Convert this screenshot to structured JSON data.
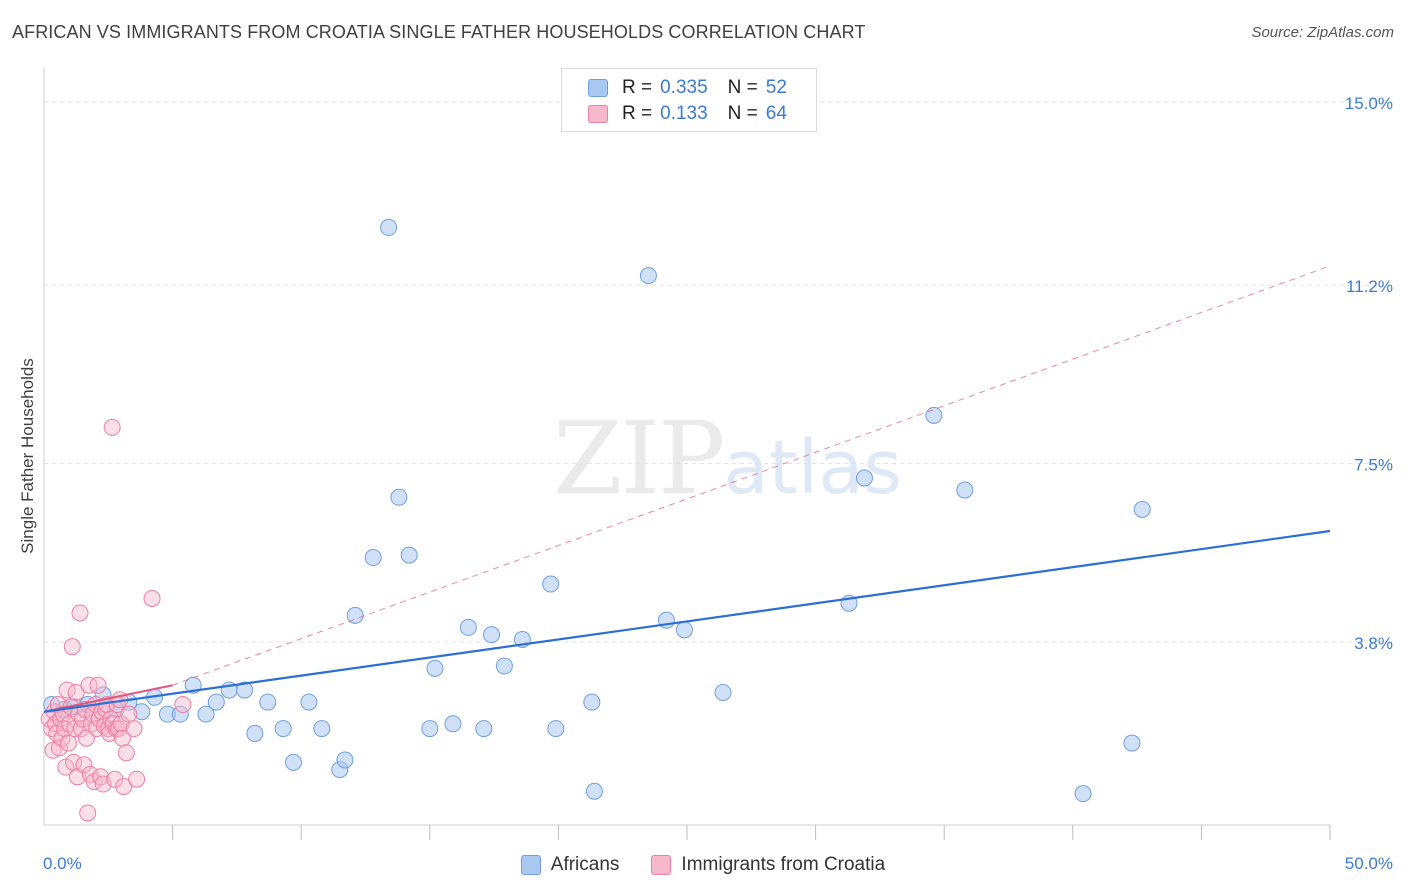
{
  "title": "AFRICAN VS IMMIGRANTS FROM CROATIA SINGLE FATHER HOUSEHOLDS CORRELATION CHART",
  "source": "Source: ZipAtlas.com",
  "watermark": {
    "zip": "ZIP",
    "atlas": "atlas"
  },
  "colors": {
    "blue_fill": "#a9c8f0",
    "blue_stroke": "#6f9fe0",
    "blue_line": "#2b6fd4",
    "pink_fill": "#f7b8cb",
    "pink_stroke": "#ee7fa0",
    "pink_line": "#e0567f",
    "grid": "#e3e3e3",
    "tick_text": "#3a7bd5"
  },
  "legend_top": [
    {
      "r_label": "R = ",
      "r_value": "0.335",
      "n_label": "N = ",
      "n_value": "52"
    },
    {
      "r_label": "R = ",
      "r_value": "0.133",
      "n_label": "N = ",
      "n_value": "64"
    }
  ],
  "legend_bottom": [
    "Africans",
    "Immigrants from Croatia"
  ],
  "chart_data": {
    "type": "scatter",
    "title": "AFRICAN VS IMMIGRANTS FROM CROATIA SINGLE FATHER HOUSEHOLDS CORRELATION CHART",
    "xlabel": "",
    "ylabel": "Single Father Households",
    "xlim": [
      0,
      50
    ],
    "ylim": [
      0,
      15.5
    ],
    "x_tick_labels": [
      "0.0%",
      "50.0%"
    ],
    "y_ticks": [
      3.8,
      7.5,
      11.2,
      15.0
    ],
    "y_tick_labels": [
      "3.8%",
      "7.5%",
      "11.2%",
      "15.0%"
    ],
    "series": [
      {
        "name": "Africans",
        "r": 0.335,
        "n": 52,
        "trend": {
          "x": [
            0,
            50
          ],
          "y": [
            2.35,
            6.1
          ],
          "style": "solid"
        },
        "points": [
          [
            0.3,
            2.5
          ],
          [
            0.8,
            2.4
          ],
          [
            1.2,
            2.45
          ],
          [
            1.7,
            2.5
          ],
          [
            2.3,
            2.7
          ],
          [
            2.8,
            2.4
          ],
          [
            3.3,
            2.55
          ],
          [
            3.8,
            2.35
          ],
          [
            4.3,
            2.65
          ],
          [
            4.8,
            2.3
          ],
          [
            5.3,
            2.3
          ],
          [
            5.8,
            2.9
          ],
          [
            6.3,
            2.3
          ],
          [
            6.7,
            2.55
          ],
          [
            7.2,
            2.8
          ],
          [
            7.8,
            2.8
          ],
          [
            8.2,
            1.9
          ],
          [
            8.7,
            2.55
          ],
          [
            9.3,
            2.0
          ],
          [
            9.7,
            1.3
          ],
          [
            10.3,
            2.55
          ],
          [
            10.8,
            2.0
          ],
          [
            11.5,
            1.15
          ],
          [
            11.7,
            1.35
          ],
          [
            12.1,
            4.35
          ],
          [
            12.8,
            5.55
          ],
          [
            13.4,
            12.4
          ],
          [
            13.8,
            6.8
          ],
          [
            14.2,
            5.6
          ],
          [
            15.0,
            2.0
          ],
          [
            15.2,
            3.25
          ],
          [
            15.9,
            2.1
          ],
          [
            16.5,
            4.1
          ],
          [
            17.1,
            2.0
          ],
          [
            17.4,
            3.95
          ],
          [
            17.9,
            3.3
          ],
          [
            18.6,
            3.85
          ],
          [
            19.7,
            5.0
          ],
          [
            19.9,
            2.0
          ],
          [
            21.3,
            2.55
          ],
          [
            21.4,
            0.7
          ],
          [
            23.5,
            11.4
          ],
          [
            24.2,
            4.25
          ],
          [
            24.9,
            4.05
          ],
          [
            26.4,
            2.75
          ],
          [
            31.3,
            4.6
          ],
          [
            31.9,
            7.2
          ],
          [
            34.6,
            8.5
          ],
          [
            35.8,
            6.95
          ],
          [
            40.4,
            0.65
          ],
          [
            42.3,
            1.7
          ],
          [
            42.7,
            6.55
          ]
        ]
      },
      {
        "name": "Immigrants from Croatia",
        "r": 0.133,
        "n": 64,
        "trend": {
          "x": [
            0,
            5
          ],
          "y": [
            2.35,
            2.9
          ],
          "style": "solid"
        },
        "trend_extended": {
          "x": [
            5,
            50
          ],
          "y": [
            2.9,
            11.6
          ],
          "style": "dashed"
        },
        "points": [
          [
            0.2,
            2.2
          ],
          [
            0.3,
            2.0
          ],
          [
            0.35,
            1.55
          ],
          [
            0.4,
            2.35
          ],
          [
            0.45,
            2.1
          ],
          [
            0.5,
            1.9
          ],
          [
            0.55,
            2.5
          ],
          [
            0.6,
            1.6
          ],
          [
            0.65,
            2.2
          ],
          [
            0.7,
            1.8
          ],
          [
            0.75,
            2.3
          ],
          [
            0.8,
            2.0
          ],
          [
            0.85,
            1.2
          ],
          [
            0.9,
            2.8
          ],
          [
            0.95,
            1.7
          ],
          [
            1.0,
            2.1
          ],
          [
            1.05,
            2.45
          ],
          [
            1.1,
            3.7
          ],
          [
            1.15,
            1.3
          ],
          [
            1.2,
            2.0
          ],
          [
            1.25,
            2.75
          ],
          [
            1.3,
            1.0
          ],
          [
            1.35,
            2.3
          ],
          [
            1.4,
            4.4
          ],
          [
            1.45,
            2.0
          ],
          [
            1.5,
            2.2
          ],
          [
            1.55,
            1.25
          ],
          [
            1.6,
            2.4
          ],
          [
            1.65,
            1.8
          ],
          [
            1.7,
            0.25
          ],
          [
            1.75,
            2.9
          ],
          [
            1.8,
            1.05
          ],
          [
            1.85,
            2.1
          ],
          [
            1.9,
            2.3
          ],
          [
            1.95,
            0.9
          ],
          [
            2.0,
            2.5
          ],
          [
            2.05,
            2.0
          ],
          [
            2.1,
            2.9
          ],
          [
            2.15,
            2.2
          ],
          [
            2.2,
            1.0
          ],
          [
            2.25,
            2.35
          ],
          [
            2.3,
            0.85
          ],
          [
            2.35,
            2.05
          ],
          [
            2.4,
            2.4
          ],
          [
            2.45,
            2.5
          ],
          [
            2.5,
            2.0
          ],
          [
            2.55,
            1.9
          ],
          [
            2.6,
            2.2
          ],
          [
            2.65,
            8.25
          ],
          [
            2.7,
            2.1
          ],
          [
            2.75,
            0.95
          ],
          [
            2.8,
            2.0
          ],
          [
            2.85,
            2.5
          ],
          [
            2.9,
            2.0
          ],
          [
            2.95,
            2.6
          ],
          [
            3.0,
            2.1
          ],
          [
            3.05,
            1.8
          ],
          [
            3.1,
            0.8
          ],
          [
            3.2,
            1.5
          ],
          [
            3.3,
            2.3
          ],
          [
            3.5,
            2.0
          ],
          [
            3.6,
            0.95
          ],
          [
            4.2,
            4.7
          ],
          [
            5.4,
            2.5
          ]
        ]
      }
    ]
  }
}
